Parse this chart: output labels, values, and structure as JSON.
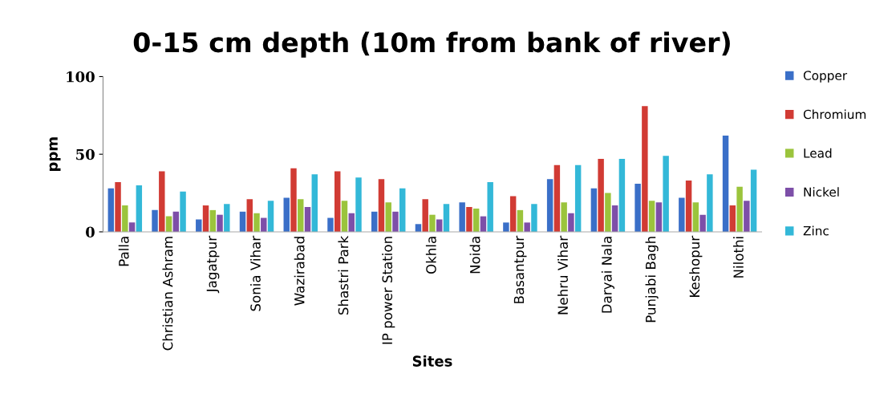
{
  "chart_data": {
    "type": "bar",
    "title": "0-15 cm depth (10m from bank of river)",
    "xlabel": "Sites",
    "ylabel": "ppm",
    "categories": [
      "Palla",
      "Christian Ashram",
      "Jagatpur",
      "Sonia Vihar",
      "Wazirabad",
      "Shastri Park",
      "IP power Station",
      "Okhla",
      "Noida",
      "Basantpur",
      "Nehru Vihar",
      "Daryai Nala",
      "Punjabi Bagh",
      "Keshopur",
      "Nilothi"
    ],
    "series": [
      {
        "name": "Copper",
        "color": "#3a6fc8",
        "values": [
          28,
          14,
          8,
          13,
          22,
          9,
          13,
          5,
          19,
          6,
          34,
          28,
          31,
          22,
          62
        ]
      },
      {
        "name": "Chromium",
        "color": "#d13b34",
        "values": [
          32,
          39,
          17,
          21,
          41,
          39,
          34,
          21,
          16,
          23,
          43,
          47,
          81,
          33,
          17
        ]
      },
      {
        "name": "Lead",
        "color": "#9bc43c",
        "values": [
          17,
          10,
          14,
          12,
          21,
          20,
          19,
          11,
          15,
          14,
          19,
          25,
          20,
          19,
          29
        ]
      },
      {
        "name": "Nickel",
        "color": "#7d4fa8",
        "values": [
          6,
          13,
          11,
          9,
          16,
          12,
          13,
          8,
          10,
          6,
          12,
          17,
          19,
          11,
          20
        ]
      },
      {
        "name": "Zinc",
        "color": "#33b8d8",
        "values": [
          30,
          26,
          18,
          20,
          37,
          35,
          28,
          18,
          32,
          18,
          43,
          47,
          49,
          37,
          40
        ]
      }
    ],
    "ylim": [
      0,
      100
    ],
    "yticks": [
      0,
      50,
      100
    ],
    "grid": false,
    "legend": "right"
  }
}
